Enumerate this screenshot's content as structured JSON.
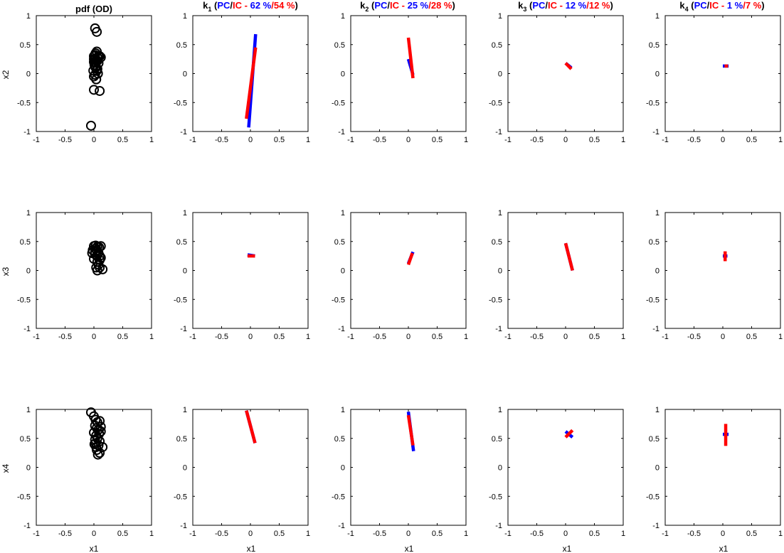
{
  "figure": {
    "col_titles": [
      {
        "plain": "pdf (OD)"
      },
      {
        "k": "k",
        "sub": "1",
        "open": " (",
        "pc": "PC",
        "slash": "/",
        "ic": "IC",
        "dash": " -  ",
        "pcpct": "62 %",
        "slash2": "/",
        "icpct": "54 %",
        "close": ")"
      },
      {
        "k": "k",
        "sub": "2",
        "open": " (",
        "pc": "PC",
        "slash": "/",
        "ic": "IC",
        "dash": " -  ",
        "pcpct": "25 %",
        "slash2": "/",
        "icpct": "28 %",
        "close": ")"
      },
      {
        "k": "k",
        "sub": "3",
        "open": " (",
        "pc": "PC",
        "slash": "/",
        "ic": "IC",
        "dash": " -  ",
        "pcpct": "12 %",
        "slash2": "/",
        "icpct": "12 %",
        "close": ")"
      },
      {
        "k": "k",
        "sub": "4",
        "open": " (",
        "pc": "PC",
        "slash": "/",
        "ic": "IC",
        "dash": " -  ",
        "pcpct": "1 %",
        "slash2": "/",
        "icpct": "7 %",
        "close": ")"
      }
    ],
    "row_ylabels": [
      "x2",
      "x3",
      "x4"
    ],
    "xlabel": "x1",
    "tick_labels": [
      "-1",
      "-0.5",
      "0",
      "0.5",
      "1"
    ],
    "colors": {
      "pc": "#0000ff",
      "ic": "#ff0000",
      "scatter": "#000000",
      "axis": "#000000"
    }
  },
  "chart_data": [
    {
      "type": "scatter",
      "row": 0,
      "col": 0,
      "xlabel": "",
      "ylabel": "x2",
      "xlim": [
        -1,
        1
      ],
      "ylim": [
        -1,
        1
      ],
      "series": [
        {
          "x": [
            0.02,
            0.05,
            0.0,
            0.02,
            0.04,
            0.06,
            0.0,
            0.01,
            0.03,
            0.05,
            0.07,
            0.08,
            0.02,
            0.1,
            0.0,
            0.04,
            0.06,
            0.02,
            0.03,
            0.05,
            0.0,
            -0.01,
            0.02,
            0.08,
            0.12,
            0.0,
            0.1,
            -0.05,
            0.06,
            0.03
          ],
          "y": [
            0.78,
            0.72,
            0.3,
            0.25,
            0.22,
            0.28,
            0.2,
            0.15,
            0.1,
            0.05,
            0.0,
            0.18,
            0.32,
            0.3,
            -0.05,
            -0.1,
            0.08,
            -0.02,
            0.12,
            0.38,
            0.25,
            0.05,
            0.2,
            0.3,
            0.28,
            -0.28,
            -0.3,
            -0.9,
            0.22,
            0.35
          ]
        }
      ]
    },
    {
      "type": "line",
      "row": 0,
      "col": 1,
      "xlim": [
        -1,
        1
      ],
      "ylim": [
        -1,
        1
      ],
      "series": [
        {
          "color": "pc",
          "x": [
            -0.03,
            0.09
          ],
          "y": [
            -0.93,
            0.68
          ]
        },
        {
          "color": "ic",
          "x": [
            -0.07,
            0.09
          ],
          "y": [
            -0.78,
            0.45
          ]
        }
      ]
    },
    {
      "type": "line",
      "row": 0,
      "col": 2,
      "xlim": [
        -1,
        1
      ],
      "ylim": [
        -1,
        1
      ],
      "series": [
        {
          "color": "pc",
          "x": [
            0.0,
            0.08
          ],
          "y": [
            0.25,
            -0.02
          ]
        },
        {
          "color": "ic",
          "x": [
            0.0,
            0.08
          ],
          "y": [
            0.62,
            -0.08
          ]
        }
      ]
    },
    {
      "type": "line",
      "row": 0,
      "col": 3,
      "xlim": [
        -1,
        1
      ],
      "ylim": [
        -1,
        1
      ],
      "series": [
        {
          "color": "pc",
          "x": [
            0.0,
            0.1
          ],
          "y": [
            0.18,
            0.1
          ]
        },
        {
          "color": "ic",
          "x": [
            0.0,
            0.1
          ],
          "y": [
            0.18,
            0.08
          ]
        }
      ]
    },
    {
      "type": "line",
      "row": 0,
      "col": 4,
      "xlim": [
        -1,
        1
      ],
      "ylim": [
        -1,
        1
      ],
      "series": [
        {
          "color": "pc",
          "x": [
            0.0,
            0.1
          ],
          "y": [
            0.13,
            0.13
          ]
        },
        {
          "color": "ic",
          "x": [
            0.03,
            0.09
          ],
          "y": [
            0.13,
            0.13
          ]
        }
      ]
    },
    {
      "type": "scatter",
      "row": 1,
      "col": 0,
      "xlabel": "",
      "ylabel": "x3",
      "xlim": [
        -1,
        1
      ],
      "ylim": [
        -1,
        1
      ],
      "series": [
        {
          "x": [
            0.0,
            0.03,
            0.06,
            0.09,
            0.12,
            0.05,
            0.08,
            0.02,
            -0.03,
            0.1,
            0.15,
            0.06,
            0.0,
            0.04,
            0.08,
            0.02,
            0.1,
            0.12,
            0.06,
            0.03,
            -0.02,
            0.05,
            0.1
          ],
          "y": [
            0.42,
            0.43,
            0.41,
            0.4,
            0.42,
            0.35,
            0.3,
            0.32,
            0.3,
            0.25,
            0.02,
            0.15,
            0.2,
            0.05,
            0.1,
            0.28,
            0.18,
            0.22,
            0.0,
            0.38,
            0.35,
            0.25,
            0.05
          ]
        }
      ]
    },
    {
      "type": "line",
      "row": 1,
      "col": 1,
      "xlim": [
        -1,
        1
      ],
      "ylim": [
        -1,
        1
      ],
      "series": [
        {
          "color": "pc",
          "x": [
            -0.05,
            0.08
          ],
          "y": [
            0.27,
            0.25
          ]
        },
        {
          "color": "ic",
          "x": [
            -0.05,
            0.08
          ],
          "y": [
            0.25,
            0.25
          ]
        }
      ]
    },
    {
      "type": "line",
      "row": 1,
      "col": 2,
      "xlim": [
        -1,
        1
      ],
      "ylim": [
        -1,
        1
      ],
      "series": [
        {
          "color": "pc",
          "x": [
            0.0,
            0.08
          ],
          "y": [
            0.12,
            0.32
          ]
        },
        {
          "color": "ic",
          "x": [
            0.0,
            0.07
          ],
          "y": [
            0.1,
            0.3
          ]
        }
      ]
    },
    {
      "type": "line",
      "row": 1,
      "col": 3,
      "xlim": [
        -1,
        1
      ],
      "ylim": [
        -1,
        1
      ],
      "series": [
        {
          "color": "pc",
          "x": [
            0.0,
            0.12
          ],
          "y": [
            0.47,
            0.0
          ]
        },
        {
          "color": "ic",
          "x": [
            0.0,
            0.12
          ],
          "y": [
            0.47,
            0.0
          ]
        }
      ]
    },
    {
      "type": "line",
      "row": 1,
      "col": 4,
      "xlim": [
        -1,
        1
      ],
      "ylim": [
        -1,
        1
      ],
      "series": [
        {
          "color": "pc",
          "x": [
            0.0,
            0.08
          ],
          "y": [
            0.25,
            0.25
          ]
        },
        {
          "color": "ic",
          "x": [
            0.04,
            0.04
          ],
          "y": [
            0.16,
            0.33
          ]
        }
      ]
    },
    {
      "type": "scatter",
      "row": 2,
      "col": 0,
      "xlabel": "x1",
      "ylabel": "x4",
      "xlim": [
        -1,
        1
      ],
      "ylim": [
        -1,
        1
      ],
      "series": [
        {
          "x": [
            -0.05,
            0.0,
            0.03,
            0.06,
            0.1,
            0.02,
            0.05,
            0.08,
            0.0,
            0.04,
            0.12,
            0.06,
            0.1,
            0.03,
            0.08,
            0.01,
            0.05,
            0.15,
            0.1,
            0.07,
            0.02,
            0.09,
            0.12,
            0.04
          ],
          "y": [
            0.95,
            0.88,
            0.82,
            0.78,
            0.8,
            0.72,
            0.68,
            0.65,
            0.6,
            0.55,
            0.62,
            0.5,
            0.45,
            0.42,
            0.38,
            0.4,
            0.3,
            0.35,
            0.25,
            0.22,
            0.48,
            0.58,
            0.7,
            0.35
          ]
        }
      ]
    },
    {
      "type": "line",
      "row": 2,
      "col": 1,
      "xlabel": "x1",
      "xlim": [
        -1,
        1
      ],
      "ylim": [
        -1,
        1
      ],
      "series": [
        {
          "color": "pc",
          "x": [
            -0.07,
            0.08
          ],
          "y": [
            0.98,
            0.42
          ]
        },
        {
          "color": "ic",
          "x": [
            -0.07,
            0.08
          ],
          "y": [
            0.98,
            0.42
          ]
        }
      ]
    },
    {
      "type": "line",
      "row": 2,
      "col": 2,
      "xlabel": "x1",
      "xlim": [
        -1,
        1
      ],
      "ylim": [
        -1,
        1
      ],
      "series": [
        {
          "color": "pc",
          "x": [
            0.0,
            0.09
          ],
          "y": [
            0.96,
            0.28
          ]
        },
        {
          "color": "ic",
          "x": [
            0.0,
            0.08
          ],
          "y": [
            0.9,
            0.38
          ]
        }
      ]
    },
    {
      "type": "line",
      "row": 2,
      "col": 3,
      "xlabel": "x1",
      "xlim": [
        -1,
        1
      ],
      "ylim": [
        -1,
        1
      ],
      "series": [
        {
          "color": "pc",
          "x": [
            0.0,
            0.12
          ],
          "y": [
            0.62,
            0.52
          ]
        },
        {
          "color": "ic",
          "x": [
            0.0,
            0.12
          ],
          "y": [
            0.52,
            0.64
          ]
        }
      ]
    },
    {
      "type": "line",
      "row": 2,
      "col": 4,
      "xlabel": "x1",
      "xlim": [
        -1,
        1
      ],
      "ylim": [
        -1,
        1
      ],
      "series": [
        {
          "color": "pc",
          "x": [
            0.0,
            0.1
          ],
          "y": [
            0.57,
            0.57
          ]
        },
        {
          "color": "ic",
          "x": [
            0.05,
            0.05
          ],
          "y": [
            0.75,
            0.37
          ]
        }
      ]
    }
  ]
}
